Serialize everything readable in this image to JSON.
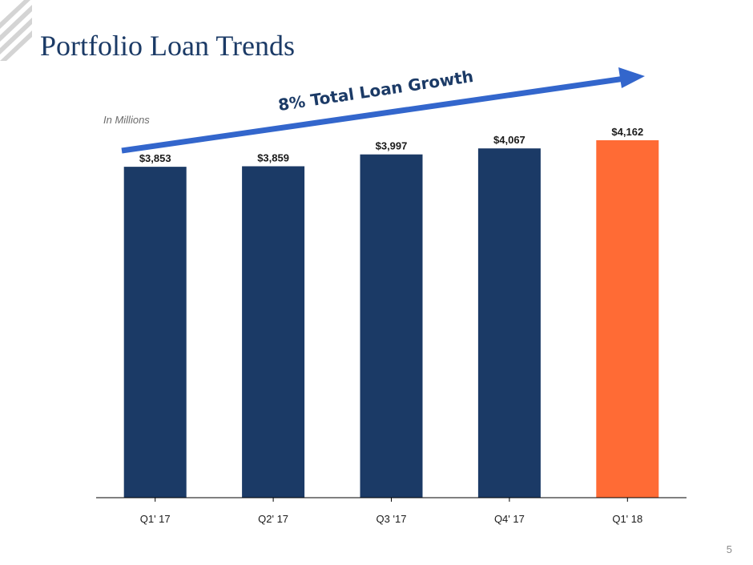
{
  "slide": {
    "title": "Portfolio Loan Trends",
    "unit_label": "In Millions",
    "page_number": "5"
  },
  "annotation": {
    "growth_text": "8% Total Loan Growth"
  },
  "colors": {
    "bar_default": "#1b3a66",
    "bar_highlight": "#ff6b35",
    "arrow": "#3366cc",
    "title": "#1b3a66"
  },
  "chart_data": {
    "type": "bar",
    "title": "Portfolio Loan Trends",
    "xlabel": "",
    "ylabel": "",
    "categories": [
      "Q1' 17",
      "Q2' 17",
      "Q3 '17",
      "Q4' 17",
      "Q1' 18"
    ],
    "values": [
      3853,
      3859,
      3997,
      4067,
      4162
    ],
    "data_labels": [
      "$3,853",
      "$3,859",
      "$3,997",
      "$4,067",
      "$4,162"
    ],
    "highlight_index": 4,
    "ylim": [
      0,
      4162
    ],
    "grid": false,
    "legend": "none"
  }
}
